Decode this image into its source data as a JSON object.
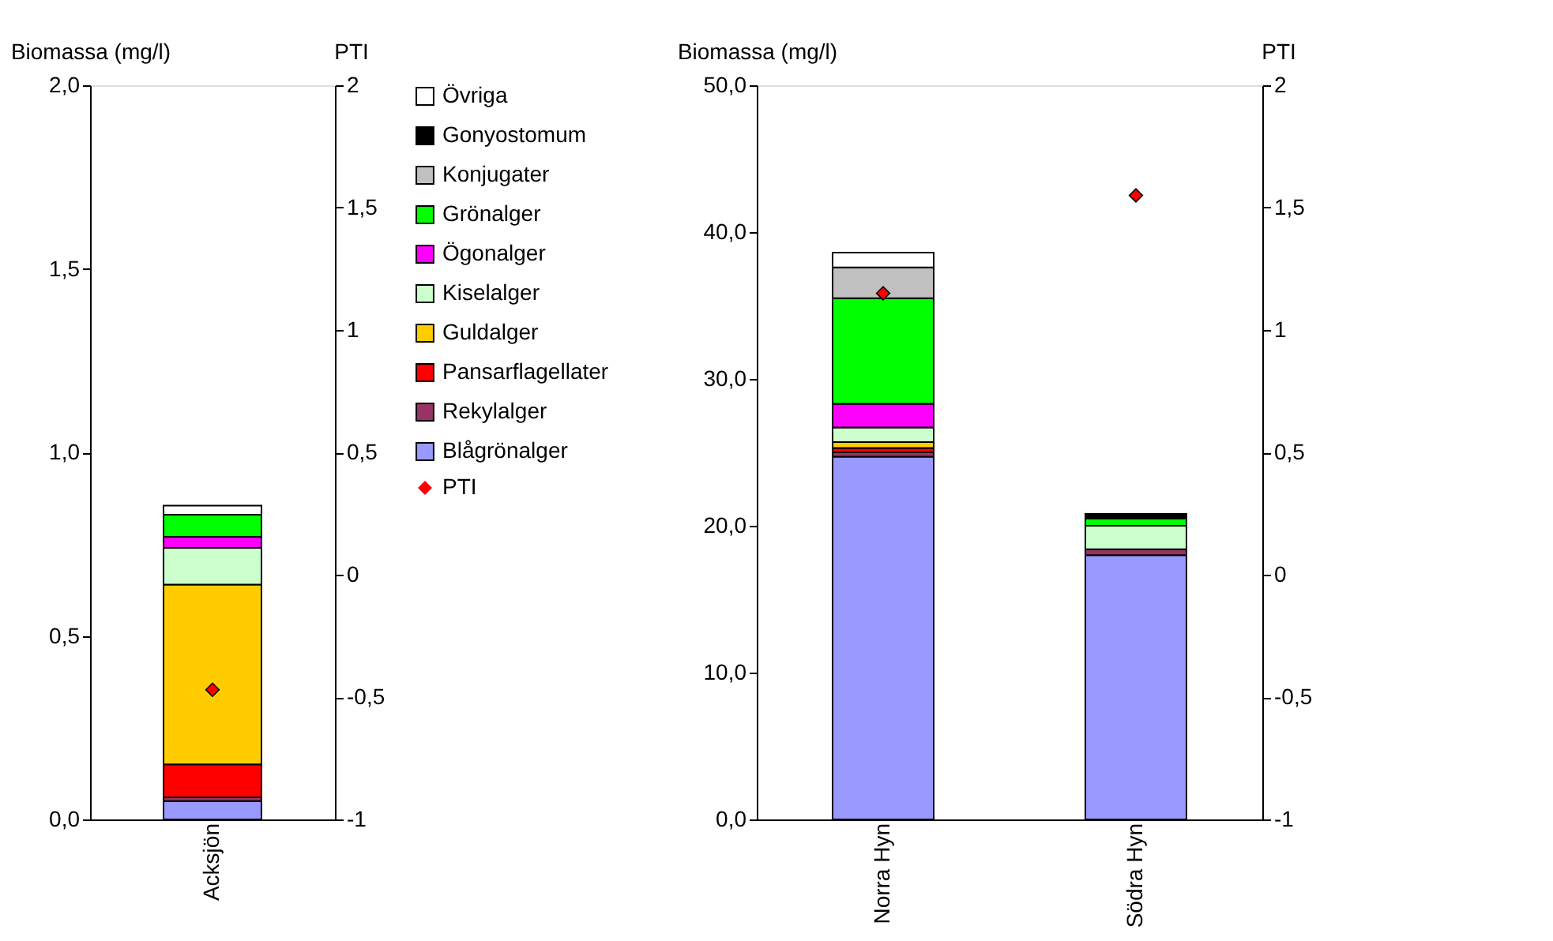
{
  "chart_data": [
    {
      "type": "bar",
      "stacked": true,
      "ylabel": "Biomassa (mg/l)",
      "y2label": "PTI",
      "categories": [
        "Acksjön"
      ],
      "legend": "right",
      "grid": false,
      "ylim": [
        0,
        2
      ],
      "yticks": [
        {
          "value": 0,
          "label": "0,0"
        },
        {
          "value": 0.5,
          "label": "0,5"
        },
        {
          "value": 1,
          "label": "1,0"
        },
        {
          "value": 1.5,
          "label": "1,5"
        },
        {
          "value": 2,
          "label": "2,0"
        }
      ],
      "y2lim": [
        -1,
        2
      ],
      "y2ticks": [
        {
          "value": -1,
          "label": "-1"
        },
        {
          "value": -0.5,
          "label": "-0,5"
        },
        {
          "value": 0,
          "label": "0"
        },
        {
          "value": 0.5,
          "label": "0,5"
        },
        {
          "value": 1,
          "label": "1"
        },
        {
          "value": 1.5,
          "label": "1,5"
        },
        {
          "value": 2,
          "label": "2"
        }
      ],
      "series": [
        {
          "name": "Blågrönalger",
          "color": "#9999ff",
          "values": [
            0.05
          ]
        },
        {
          "name": "Rekylalger",
          "color": "#993366",
          "values": [
            0.01
          ]
        },
        {
          "name": "Pansarflagellater",
          "color": "#ff0000",
          "values": [
            0.09
          ]
        },
        {
          "name": "Guldalger",
          "color": "#ffcc00",
          "values": [
            0.49
          ]
        },
        {
          "name": "Kiselalger",
          "color": "#ccffcc",
          "values": [
            0.1
          ]
        },
        {
          "name": "Ögonalger",
          "color": "#ff00ff",
          "values": [
            0.03
          ]
        },
        {
          "name": "Grönalger",
          "color": "#00ff00",
          "values": [
            0.06
          ]
        },
        {
          "name": "Konjugater",
          "color": "#c0c0c0",
          "values": [
            0
          ]
        },
        {
          "name": "Gonyostomum",
          "color": "#000000",
          "values": [
            0
          ]
        },
        {
          "name": "Övriga",
          "color": "#ffffff",
          "values": [
            0.025
          ]
        },
        {
          "name": "PTI",
          "type": "scatter",
          "axis": "y2",
          "marker": "diamond",
          "color": "#ff0000",
          "values": [
            -0.47
          ]
        }
      ]
    },
    {
      "type": "bar",
      "stacked": true,
      "ylabel": "Biomassa (mg/l)",
      "y2label": "PTI",
      "categories": [
        "Norra Hyn",
        "Södra Hyn"
      ],
      "legend": false,
      "grid": false,
      "ylim": [
        0,
        50
      ],
      "yticks": [
        {
          "value": 0,
          "label": "0,0"
        },
        {
          "value": 10,
          "label": "10,0"
        },
        {
          "value": 20,
          "label": "20,0"
        },
        {
          "value": 30,
          "label": "30,0"
        },
        {
          "value": 40,
          "label": "40,0"
        },
        {
          "value": 50,
          "label": "50,0"
        }
      ],
      "y2lim": [
        -1,
        2
      ],
      "y2ticks": [
        {
          "value": -1,
          "label": "-1"
        },
        {
          "value": -0.5,
          "label": "-0,5"
        },
        {
          "value": 0,
          "label": "0"
        },
        {
          "value": 0.5,
          "label": "0,5"
        },
        {
          "value": 1,
          "label": "1"
        },
        {
          "value": 1.5,
          "label": "1,5"
        },
        {
          "value": 2,
          "label": "2"
        }
      ],
      "series": [
        {
          "color": "#9999ff",
          "values": [
            24.7,
            18.0
          ]
        },
        {
          "color": "#993366",
          "values": [
            0.3,
            0.4
          ]
        },
        {
          "color": "#ff0000",
          "values": [
            0.3,
            0
          ]
        },
        {
          "color": "#ffcc00",
          "values": [
            0.4,
            0
          ]
        },
        {
          "color": "#ccffcc",
          "values": [
            1.0,
            1.6
          ]
        },
        {
          "color": "#ff00ff",
          "values": [
            1.6,
            0
          ]
        },
        {
          "color": "#00ff00",
          "values": [
            7.2,
            0.5
          ]
        },
        {
          "color": "#c0c0c0",
          "values": [
            2.1,
            0
          ]
        },
        {
          "color": "#000000",
          "values": [
            0,
            0.3
          ]
        },
        {
          "color": "#ffffff",
          "values": [
            1.0,
            0
          ]
        },
        {
          "type": "scatter",
          "axis": "y2",
          "marker": "diamond",
          "color": "#ff0000",
          "values": [
            1.15,
            1.55
          ]
        }
      ]
    }
  ]
}
